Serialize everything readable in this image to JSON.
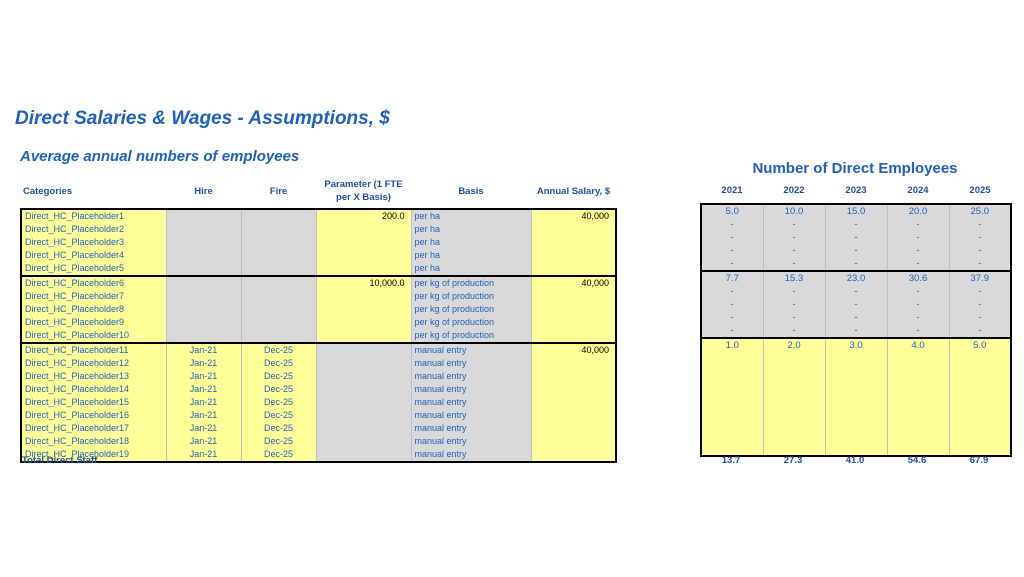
{
  "title": "Direct Salaries & Wages - Assumptions, $",
  "subtitle": "Average annual numbers of employees",
  "left": {
    "headers": {
      "cat": "Categories",
      "hire": "Hire",
      "fire": "Fire",
      "param": "Parameter (1 FTE per X Basis)",
      "basis": "Basis",
      "sal": "Annual Salary, $"
    },
    "rows": [
      {
        "cat": "Direct_HC_Placeholder1",
        "hire": "",
        "fire": "",
        "param": "200.0",
        "basis": "per ha",
        "sal": "40,000",
        "section": "A",
        "first": true
      },
      {
        "cat": "Direct_HC_Placeholder2",
        "hire": "",
        "fire": "",
        "param": "",
        "basis": "per ha",
        "sal": "",
        "section": "A"
      },
      {
        "cat": "Direct_HC_Placeholder3",
        "hire": "",
        "fire": "",
        "param": "",
        "basis": "per ha",
        "sal": "",
        "section": "A"
      },
      {
        "cat": "Direct_HC_Placeholder4",
        "hire": "",
        "fire": "",
        "param": "",
        "basis": "per ha",
        "sal": "",
        "section": "A"
      },
      {
        "cat": "Direct_HC_Placeholder5",
        "hire": "",
        "fire": "",
        "param": "",
        "basis": "per ha",
        "sal": "",
        "section": "A"
      },
      {
        "cat": "Direct_HC_Placeholder6",
        "hire": "",
        "fire": "",
        "param": "10,000.0",
        "basis": "per kg of production",
        "sal": "40,000",
        "section": "B",
        "div": true
      },
      {
        "cat": "Direct_HC_Placeholder7",
        "hire": "",
        "fire": "",
        "param": "",
        "basis": "per kg of production",
        "sal": "",
        "section": "B"
      },
      {
        "cat": "Direct_HC_Placeholder8",
        "hire": "",
        "fire": "",
        "param": "",
        "basis": "per kg of production",
        "sal": "",
        "section": "B"
      },
      {
        "cat": "Direct_HC_Placeholder9",
        "hire": "",
        "fire": "",
        "param": "",
        "basis": "per kg of production",
        "sal": "",
        "section": "B"
      },
      {
        "cat": "Direct_HC_Placeholder10",
        "hire": "",
        "fire": "",
        "param": "",
        "basis": "per kg of production",
        "sal": "",
        "section": "B"
      },
      {
        "cat": "Direct_HC_Placeholder11",
        "hire": "Jan-21",
        "fire": "Dec-25",
        "param": "",
        "basis": "manual entry",
        "sal": "40,000",
        "section": "C",
        "div": true
      },
      {
        "cat": "Direct_HC_Placeholder12",
        "hire": "Jan-21",
        "fire": "Dec-25",
        "param": "",
        "basis": "manual entry",
        "sal": "",
        "section": "C"
      },
      {
        "cat": "Direct_HC_Placeholder13",
        "hire": "Jan-21",
        "fire": "Dec-25",
        "param": "",
        "basis": "manual entry",
        "sal": "",
        "section": "C"
      },
      {
        "cat": "Direct_HC_Placeholder14",
        "hire": "Jan-21",
        "fire": "Dec-25",
        "param": "",
        "basis": "manual entry",
        "sal": "",
        "section": "C"
      },
      {
        "cat": "Direct_HC_Placeholder15",
        "hire": "Jan-21",
        "fire": "Dec-25",
        "param": "",
        "basis": "manual entry",
        "sal": "",
        "section": "C"
      },
      {
        "cat": "Direct_HC_Placeholder16",
        "hire": "Jan-21",
        "fire": "Dec-25",
        "param": "",
        "basis": "manual entry",
        "sal": "",
        "section": "C"
      },
      {
        "cat": "Direct_HC_Placeholder17",
        "hire": "Jan-21",
        "fire": "Dec-25",
        "param": "",
        "basis": "manual entry",
        "sal": "",
        "section": "C"
      },
      {
        "cat": "Direct_HC_Placeholder18",
        "hire": "Jan-21",
        "fire": "Dec-25",
        "param": "",
        "basis": "manual entry",
        "sal": "",
        "section": "C"
      },
      {
        "cat": "Direct_HC_Placeholder19",
        "hire": "Jan-21",
        "fire": "Dec-25",
        "param": "",
        "basis": "manual entry",
        "sal": "",
        "section": "C",
        "last": true
      }
    ],
    "total_label": "Total Direct Staff"
  },
  "right": {
    "title": "Number of Direct Employees",
    "years": [
      "2021",
      "2022",
      "2023",
      "2024",
      "2025"
    ],
    "rows": [
      {
        "vals": [
          "5.0",
          "10.0",
          "15.0",
          "20.0",
          "25.0"
        ],
        "bg": "grey",
        "first": true
      },
      {
        "vals": [
          "-",
          "-",
          "-",
          "-",
          "-"
        ],
        "bg": "grey"
      },
      {
        "vals": [
          "-",
          "-",
          "-",
          "-",
          "-"
        ],
        "bg": "grey"
      },
      {
        "vals": [
          "-",
          "-",
          "-",
          "-",
          "-"
        ],
        "bg": "grey"
      },
      {
        "vals": [
          "-",
          "-",
          "-",
          "-",
          "-"
        ],
        "bg": "grey"
      },
      {
        "vals": [
          "7.7",
          "15.3",
          "23.0",
          "30.6",
          "37.9"
        ],
        "bg": "grey",
        "div": true
      },
      {
        "vals": [
          "-",
          "-",
          "-",
          "-",
          "-"
        ],
        "bg": "grey"
      },
      {
        "vals": [
          "-",
          "-",
          "-",
          "-",
          "-"
        ],
        "bg": "grey"
      },
      {
        "vals": [
          "-",
          "-",
          "-",
          "-",
          "-"
        ],
        "bg": "grey"
      },
      {
        "vals": [
          "-",
          "-",
          "-",
          "-",
          "-"
        ],
        "bg": "grey"
      },
      {
        "vals": [
          "1.0",
          "2.0",
          "3.0",
          "4.0",
          "5.0"
        ],
        "bg": "yellow",
        "div": true
      },
      {
        "vals": [
          "",
          "",
          "",
          "",
          ""
        ],
        "bg": "yellow"
      },
      {
        "vals": [
          "",
          "",
          "",
          "",
          ""
        ],
        "bg": "yellow"
      },
      {
        "vals": [
          "",
          "",
          "",
          "",
          ""
        ],
        "bg": "yellow"
      },
      {
        "vals": [
          "",
          "",
          "",
          "",
          ""
        ],
        "bg": "yellow"
      },
      {
        "vals": [
          "",
          "",
          "",
          "",
          ""
        ],
        "bg": "yellow"
      },
      {
        "vals": [
          "",
          "",
          "",
          "",
          ""
        ],
        "bg": "yellow"
      },
      {
        "vals": [
          "",
          "",
          "",
          "",
          ""
        ],
        "bg": "yellow"
      },
      {
        "vals": [
          "",
          "",
          "",
          "",
          ""
        ],
        "bg": "yellow",
        "last": true
      }
    ],
    "totals": [
      "13.7",
      "27.3",
      "41.0",
      "54.6",
      "67.9"
    ]
  },
  "colors": {
    "heading_blue": "#1f5fbf",
    "header_blue": "#1f4e9c",
    "yellow": "#ffff99",
    "grey": "#d9d9d9",
    "border_light": "#bfbfbf",
    "border_dark": "#000000",
    "background": "#ffffff"
  }
}
